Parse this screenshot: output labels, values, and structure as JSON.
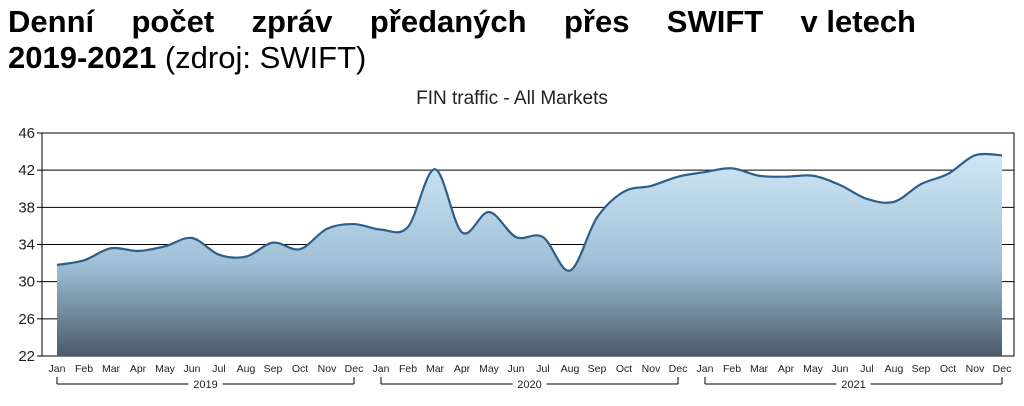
{
  "heading": {
    "line1_words": [
      "Denní",
      "počet",
      "zpráv",
      "předaných",
      "přes",
      "SWIFT",
      "v letech"
    ],
    "line2_bold": "2019-2021",
    "line2_rest": " (zdroj: SWIFT)"
  },
  "chart_data": {
    "type": "area",
    "title": "FIN traffic - All Markets",
    "xlabel": "",
    "ylabel": "",
    "ylim": [
      22,
      46
    ],
    "yticks": [
      22,
      26,
      30,
      34,
      38,
      42,
      46
    ],
    "grid": true,
    "categories": [
      "Jan",
      "Feb",
      "Mar",
      "Apr",
      "May",
      "Jun",
      "Jul",
      "Aug",
      "Sep",
      "Oct",
      "Nov",
      "Dec",
      "Jan",
      "Feb",
      "Mar",
      "Apr",
      "May",
      "Jun",
      "Jul",
      "Aug",
      "Sep",
      "Oct",
      "Nov",
      "Dec",
      "Jan",
      "Feb",
      "Mar",
      "Apr",
      "May",
      "Jun",
      "Jul",
      "Aug",
      "Sep",
      "Oct",
      "Nov",
      "Dec"
    ],
    "years": [
      "2019",
      "2020",
      "2021"
    ],
    "values": [
      31.8,
      32.3,
      33.6,
      33.3,
      33.8,
      34.7,
      32.9,
      32.7,
      34.2,
      33.5,
      35.7,
      36.2,
      35.6,
      35.9,
      42.1,
      35.3,
      37.5,
      34.8,
      34.8,
      31.2,
      36.9,
      39.7,
      40.3,
      41.3,
      41.8,
      42.2,
      41.4,
      41.3,
      41.4,
      40.4,
      38.9,
      38.6,
      40.5,
      41.6,
      43.6,
      43.6
    ],
    "colors": {
      "fill_top": "#cfe7f6",
      "fill_bottom": "#4a5a6a",
      "line": "#2e5f8a",
      "grid": "#000000"
    }
  }
}
